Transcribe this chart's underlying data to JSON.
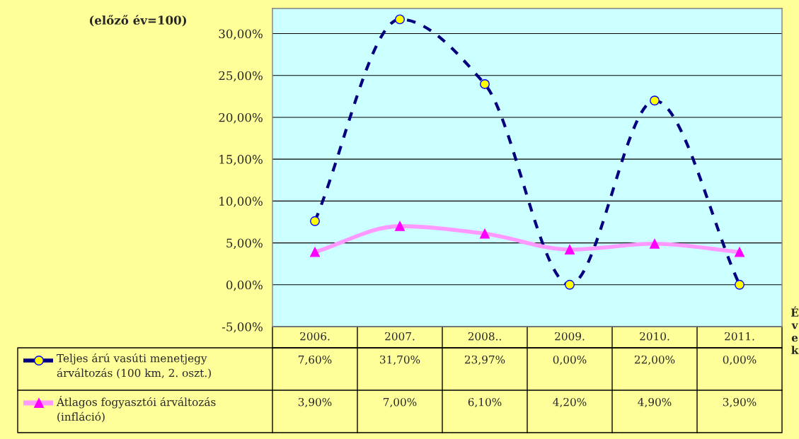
{
  "chart_data": {
    "type": "line",
    "title": "(előző év=100)",
    "xlabel": "Évek",
    "categories": [
      "2006.",
      "2007.",
      "2008..",
      "2009.",
      "2010.",
      "2011."
    ],
    "series": [
      {
        "name": "Teljes árú vasúti menetjegy árváltozás (100 km, 2. oszt.)",
        "color": "#000080",
        "marker": "circle",
        "line_style": "dashed",
        "values": [
          7.6,
          31.7,
          23.97,
          0.0,
          22.0,
          0.0
        ],
        "value_labels": [
          "7,60%",
          "31,70%",
          "23,97%",
          "0,00%",
          "22,00%",
          "0,00%"
        ]
      },
      {
        "name": "Átlagos fogyasztói árváltozás (infláció)",
        "color": "#ff99ff",
        "marker": "triangle",
        "line_style": "solid",
        "values": [
          3.9,
          7.0,
          6.1,
          4.2,
          4.9,
          3.9
        ],
        "value_labels": [
          "3,90%",
          "7,00%",
          "6,10%",
          "4,20%",
          "4,90%",
          "3,90%"
        ]
      }
    ],
    "ylim": [
      -5,
      33
    ],
    "yticks": [
      {
        "value": -5,
        "label": "-5,00%"
      },
      {
        "value": 0,
        "label": "0,00%"
      },
      {
        "value": 5,
        "label": "5,00%"
      },
      {
        "value": 10,
        "label": "10,00%"
      },
      {
        "value": 15,
        "label": "15,00%"
      },
      {
        "value": 20,
        "label": "20,00%"
      },
      {
        "value": 25,
        "label": "25,00%"
      },
      {
        "value": 30,
        "label": "30,00%"
      }
    ],
    "grid": "y",
    "legend": "bottom left"
  }
}
